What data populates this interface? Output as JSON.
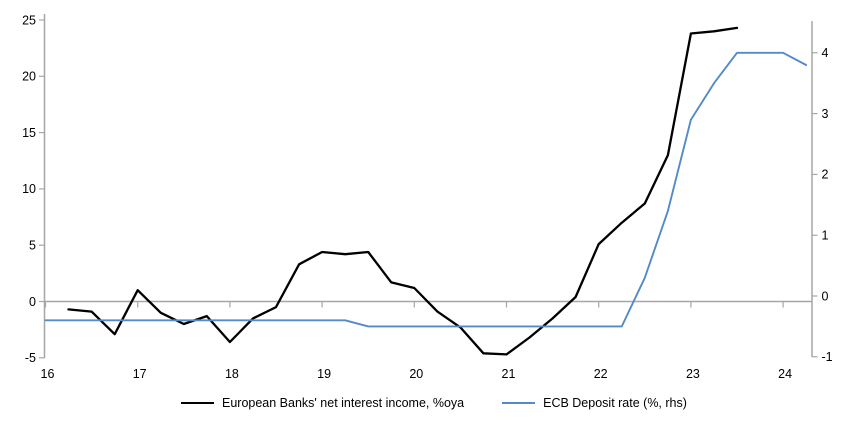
{
  "chart_data": {
    "type": "line",
    "title": "",
    "x_axis": {
      "ticks": [
        16,
        17,
        18,
        19,
        20,
        21,
        22,
        23,
        24
      ],
      "range": [
        16,
        24.33
      ]
    },
    "left_axis": {
      "ticks": [
        25,
        20,
        15,
        10,
        5,
        0,
        -5
      ],
      "range": [
        -5,
        25
      ],
      "label": ""
    },
    "right_axis": {
      "ticks": [
        4,
        3,
        2,
        1,
        0,
        -1
      ],
      "range": [
        -1,
        4.3
      ],
      "label": ""
    },
    "grid": "zero-line-only",
    "colors": {
      "axis": "#a6a6a6",
      "nii_line": "#000000",
      "ecb_line": "#548AC6"
    },
    "legend": {
      "position": "bottom"
    },
    "series": [
      {
        "name": "European Banks' net interest income, %oya",
        "axis": "left",
        "color": "#000000",
        "points": [
          [
            16.25,
            -0.7
          ],
          [
            16.5,
            -0.9
          ],
          [
            16.75,
            -2.9
          ],
          [
            17.0,
            1.0
          ],
          [
            17.25,
            -1.0
          ],
          [
            17.5,
            -2.0
          ],
          [
            17.75,
            -1.3
          ],
          [
            18.0,
            -3.6
          ],
          [
            18.25,
            -1.5
          ],
          [
            18.5,
            -0.5
          ],
          [
            18.75,
            3.3
          ],
          [
            19.0,
            4.4
          ],
          [
            19.25,
            4.2
          ],
          [
            19.5,
            4.4
          ],
          [
            19.75,
            1.7
          ],
          [
            20.0,
            1.2
          ],
          [
            20.25,
            -0.9
          ],
          [
            20.5,
            -2.3
          ],
          [
            20.75,
            -4.6
          ],
          [
            21.0,
            -4.7
          ],
          [
            21.25,
            -3.2
          ],
          [
            21.5,
            -1.5
          ],
          [
            21.75,
            0.4
          ],
          [
            22.0,
            5.1
          ],
          [
            22.25,
            7.0
          ],
          [
            22.5,
            8.7
          ],
          [
            22.75,
            13.0
          ],
          [
            23.0,
            23.8
          ],
          [
            23.25,
            24.0
          ],
          [
            23.5,
            24.3
          ]
        ]
      },
      {
        "name": "ECB Deposit rate (%, rhs)",
        "axis": "right",
        "color": "#548AC6",
        "points": [
          [
            16.0,
            -0.4
          ],
          [
            16.25,
            -0.4
          ],
          [
            16.5,
            -0.4
          ],
          [
            16.75,
            -0.4
          ],
          [
            17.0,
            -0.4
          ],
          [
            17.25,
            -0.4
          ],
          [
            17.5,
            -0.4
          ],
          [
            17.75,
            -0.4
          ],
          [
            18.0,
            -0.4
          ],
          [
            18.25,
            -0.4
          ],
          [
            18.5,
            -0.4
          ],
          [
            18.75,
            -0.4
          ],
          [
            19.0,
            -0.4
          ],
          [
            19.25,
            -0.4
          ],
          [
            19.5,
            -0.5
          ],
          [
            19.75,
            -0.5
          ],
          [
            20.0,
            -0.5
          ],
          [
            20.25,
            -0.5
          ],
          [
            20.5,
            -0.5
          ],
          [
            20.75,
            -0.5
          ],
          [
            21.0,
            -0.5
          ],
          [
            21.25,
            -0.5
          ],
          [
            21.5,
            -0.5
          ],
          [
            21.75,
            -0.5
          ],
          [
            22.0,
            -0.5
          ],
          [
            22.25,
            -0.5
          ],
          [
            22.5,
            0.3
          ],
          [
            22.75,
            1.4
          ],
          [
            23.0,
            2.9
          ],
          [
            23.25,
            3.5
          ],
          [
            23.5,
            4.0
          ],
          [
            23.75,
            4.0
          ],
          [
            24.0,
            4.0
          ],
          [
            24.25,
            3.8
          ]
        ]
      }
    ]
  }
}
